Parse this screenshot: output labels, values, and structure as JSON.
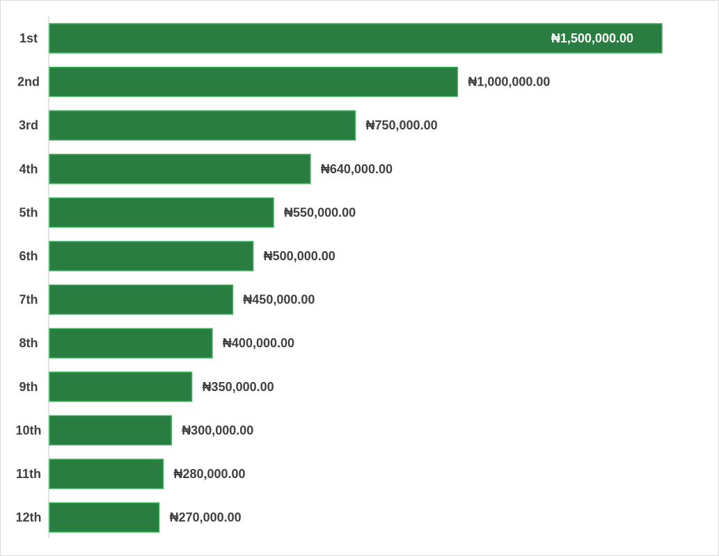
{
  "chart_data": {
    "type": "bar",
    "orientation": "horizontal",
    "categories": [
      "1st",
      "2nd",
      "3rd",
      "4th",
      "5th",
      "6th",
      "7th",
      "8th",
      "9th",
      "10th",
      "11th",
      "12th"
    ],
    "values": [
      1500000,
      1000000,
      750000,
      640000,
      550000,
      500000,
      450000,
      400000,
      350000,
      300000,
      280000,
      270000
    ],
    "value_labels": [
      "₦1,500,000.00",
      "₦1,000,000.00",
      "₦750,000.00",
      "₦640,000.00",
      "₦550,000.00",
      "₦500,000.00",
      "₦450,000.00",
      "₦400,000.00",
      "₦350,000.00",
      "₦300,000.00",
      "₦280,000.00",
      "₦270,000.00"
    ],
    "xlim": [
      0,
      1500000
    ],
    "title": "",
    "xlabel": "",
    "ylabel": "",
    "grid": false,
    "legend": "none",
    "colors": {
      "bar_fill": "#2a7d41",
      "bar_stroke": "#3cb35a",
      "label_outside": "#404040",
      "label_inside": "#ffffff",
      "axis_line": "#d9d9d9"
    }
  }
}
